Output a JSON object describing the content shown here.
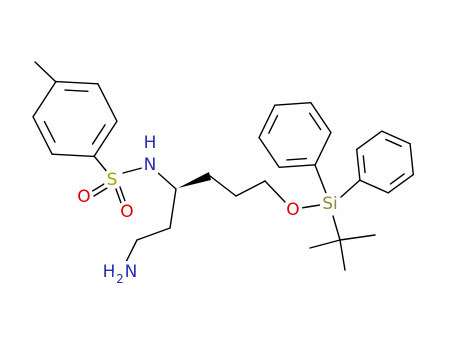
{
  "atoms": [
    "H",
    "N",
    "S",
    "O",
    "O",
    "O",
    "Si",
    "H",
    "2",
    "N"
  ]
}
